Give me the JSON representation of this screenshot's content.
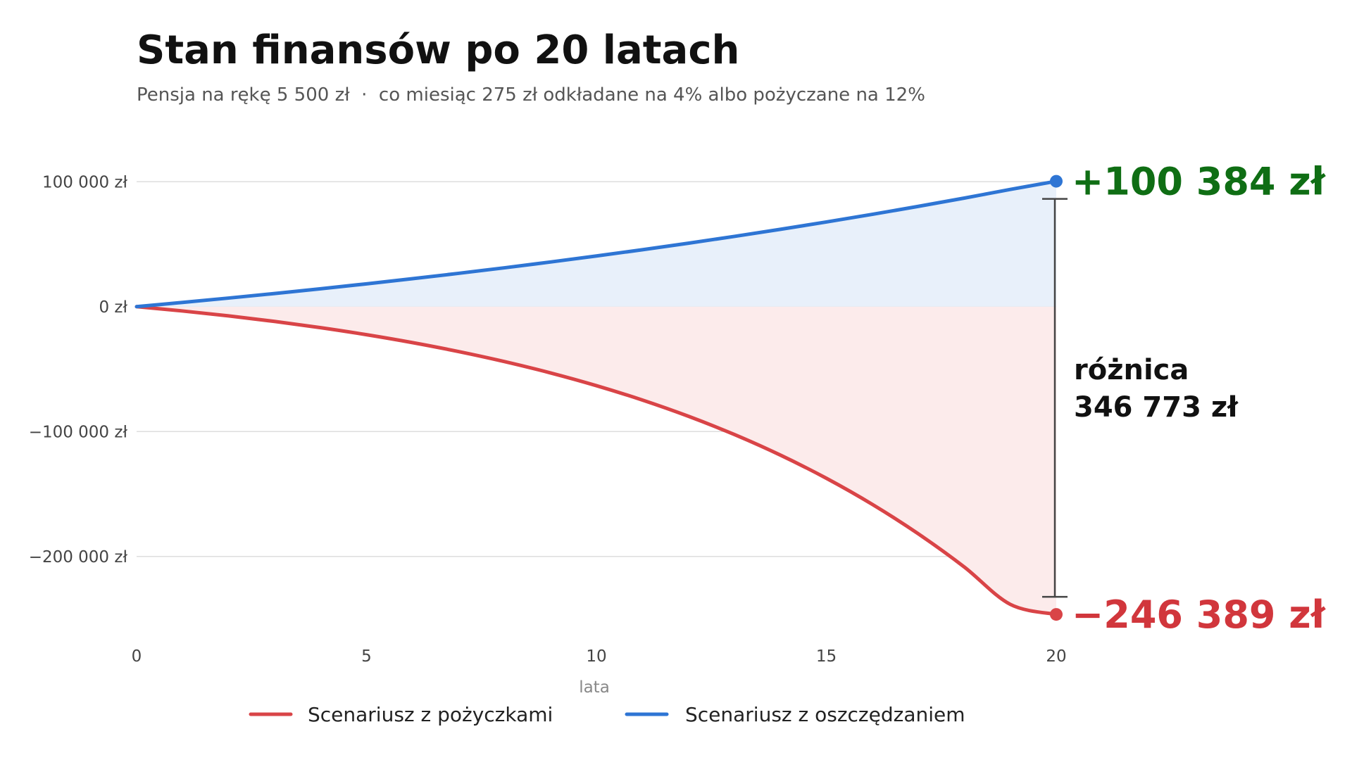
{
  "chart_data": {
    "type": "line",
    "title": "Stan finansów po 20 latach",
    "subtitle": "Pensja na rękę 5 500 zł  ·  co miesiąc 275 zł odkładane na 4% albo pożyczane na 12%",
    "xlabel": "lata",
    "ylabel": "",
    "xlim": [
      0,
      20
    ],
    "ylim": [
      -270000,
      130000
    ],
    "xticks": [
      {
        "value": 0,
        "label": "0"
      },
      {
        "value": 5,
        "label": "5"
      },
      {
        "value": 10,
        "label": "10"
      },
      {
        "value": 15,
        "label": "15"
      },
      {
        "value": 20,
        "label": "20"
      }
    ],
    "yticks": [
      {
        "value": 100000,
        "label": "100 000 zł"
      },
      {
        "value": 0,
        "label": "0 zł"
      },
      {
        "value": -100000,
        "label": "−100 000 zł"
      },
      {
        "value": -200000,
        "label": "−200 000 zł"
      }
    ],
    "grid": true,
    "legend_position": "bottom",
    "x": [
      0,
      1,
      2,
      3,
      4,
      5,
      6,
      7,
      8,
      9,
      10,
      11,
      12,
      13,
      14,
      15,
      16,
      17,
      18,
      19,
      20
    ],
    "series": [
      {
        "name": "Scenariusz z pożyczkami",
        "color": "#d94447",
        "fill": "#fcebeb",
        "values": [
          0,
          -3487,
          -7417,
          -11846,
          -16836,
          -22460,
          -28797,
          -35938,
          -43984,
          -53051,
          -63267,
          -74780,
          -87752,
          -102370,
          -118841,
          -137402,
          -158315,
          -181882,
          -208437,
          -238358,
          -246389
        ]
      },
      {
        "name": "Scenariusz z oszczędzaniem",
        "color": "#2e75d4",
        "fill": "#e8f0fa",
        "values": [
          0,
          3366,
          6869,
          10515,
          14310,
          18259,
          22369,
          26646,
          31098,
          35731,
          40552,
          45570,
          50793,
          56228,
          61884,
          67771,
          73897,
          80273,
          86909,
          93815,
          100384
        ]
      }
    ],
    "annotations": {
      "end_positive": "+100 384 zł",
      "end_negative": "−246 389 zł",
      "difference_line1": "różnica",
      "difference_line2": "346 773 zł",
      "positive_color": "#0f6e14",
      "negative_color": "#d1363c",
      "bracket_color": "#444444"
    }
  }
}
